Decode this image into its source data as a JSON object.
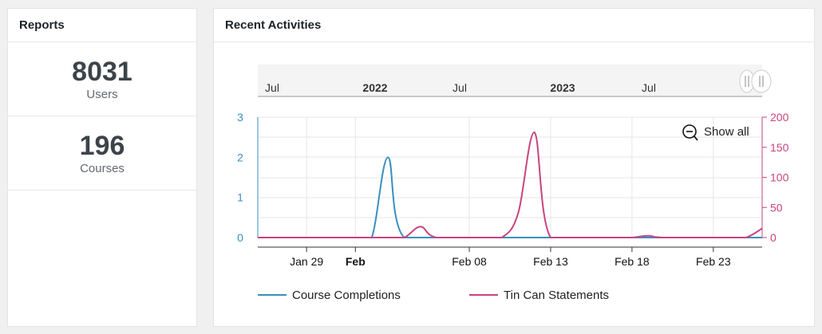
{
  "reports": {
    "title": "Reports",
    "stats": [
      {
        "value": "8031",
        "label": "Users"
      },
      {
        "value": "196",
        "label": "Courses"
      }
    ]
  },
  "activities": {
    "title": "Recent Activities",
    "show_all_label": "Show all",
    "zoom_icon": "zoom-out-icon",
    "navigator_labels": [
      {
        "text": "Jul",
        "bold": false
      },
      {
        "text": "2022",
        "bold": true
      },
      {
        "text": "Jul",
        "bold": false
      },
      {
        "text": "2023",
        "bold": true
      },
      {
        "text": "Jul",
        "bold": false
      }
    ]
  },
  "chart_data": {
    "type": "line",
    "xlabel": "",
    "x_range": [
      "2022-01-26",
      "2022-02-26"
    ],
    "x_ticks": [
      {
        "date": "2022-01-29",
        "label": "Jan 29",
        "bold": false
      },
      {
        "date": "2022-02-01",
        "label": "Feb",
        "bold": true
      },
      {
        "date": "2022-02-08",
        "label": "Feb 08",
        "bold": false
      },
      {
        "date": "2022-02-13",
        "label": "Feb 13",
        "bold": false
      },
      {
        "date": "2022-02-18",
        "label": "Feb 18",
        "bold": false
      },
      {
        "date": "2022-02-23",
        "label": "Feb 23",
        "bold": false
      }
    ],
    "y_left": {
      "min": 0,
      "max": 3,
      "ticks": [
        0,
        1,
        2,
        3
      ],
      "color": "#3a8fbf"
    },
    "y_right": {
      "min": 0,
      "max": 200,
      "ticks": [
        0,
        50,
        100,
        150,
        200
      ],
      "color": "#c8447e"
    },
    "legend_position": "bottom",
    "series": [
      {
        "name": "Course Completions",
        "axis": "left",
        "color": "#3a8fbf",
        "points": [
          [
            "2022-01-26",
            0
          ],
          [
            "2022-02-01",
            0
          ],
          [
            "2022-02-02",
            0
          ],
          [
            "2022-02-03",
            2
          ],
          [
            "2022-02-04",
            0
          ],
          [
            "2022-02-08",
            0
          ],
          [
            "2022-02-13",
            0
          ],
          [
            "2022-02-18",
            0
          ],
          [
            "2022-02-26",
            0
          ]
        ]
      },
      {
        "name": "Tin Can Statements",
        "axis": "right",
        "color": "#c8447e",
        "points": [
          [
            "2022-01-26",
            0
          ],
          [
            "2022-02-03",
            0
          ],
          [
            "2022-02-04",
            0
          ],
          [
            "2022-02-05",
            18
          ],
          [
            "2022-02-06",
            0
          ],
          [
            "2022-02-09",
            0
          ],
          [
            "2022-02-10",
            0
          ],
          [
            "2022-02-11",
            40
          ],
          [
            "2022-02-12",
            175
          ],
          [
            "2022-02-13",
            0
          ],
          [
            "2022-02-16",
            0
          ],
          [
            "2022-02-17",
            0
          ],
          [
            "2022-02-18",
            0
          ],
          [
            "2022-02-19",
            3
          ],
          [
            "2022-02-20",
            0
          ],
          [
            "2022-02-24",
            0
          ],
          [
            "2022-02-25",
            0
          ],
          [
            "2022-02-26",
            15
          ]
        ]
      }
    ]
  }
}
